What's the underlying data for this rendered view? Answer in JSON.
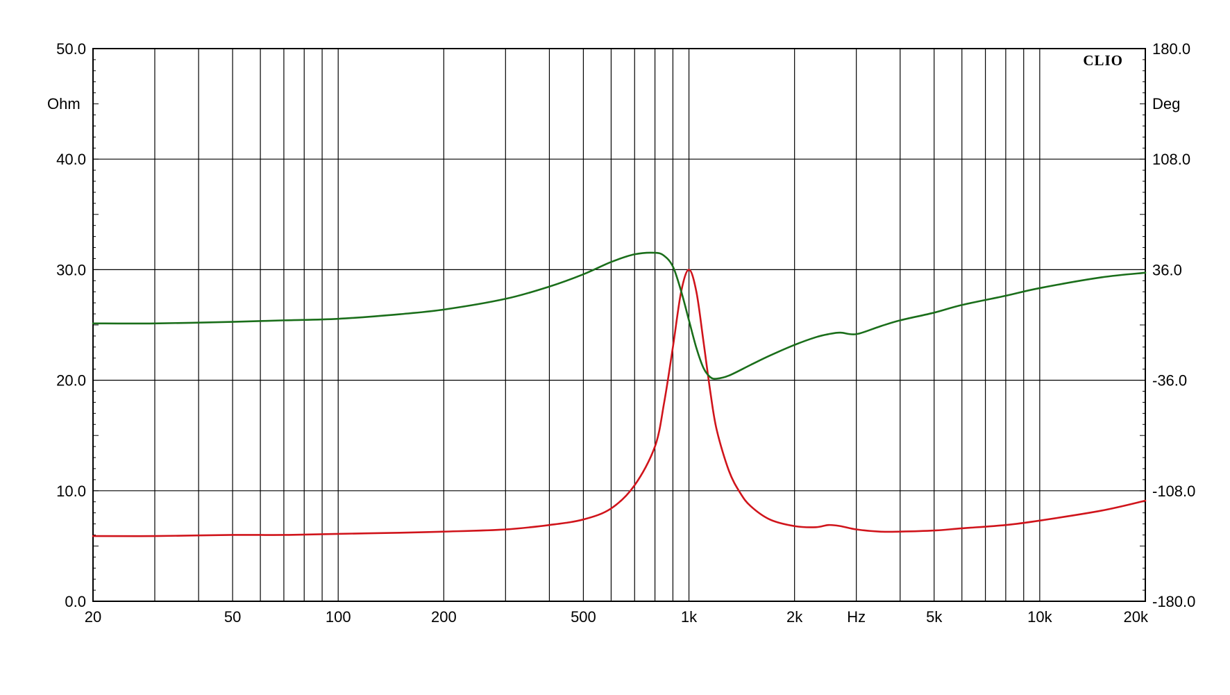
{
  "chart_data": {
    "type": "line",
    "title": "",
    "brand_label": "CLIO",
    "x_axis": {
      "scale": "log",
      "range": [
        20,
        20000
      ],
      "unit_label": "Hz",
      "tick_labels": [
        {
          "value": 20,
          "label": "20"
        },
        {
          "value": 50,
          "label": "50"
        },
        {
          "value": 100,
          "label": "100"
        },
        {
          "value": 200,
          "label": "200"
        },
        {
          "value": 500,
          "label": "500"
        },
        {
          "value": 1000,
          "label": "1k"
        },
        {
          "value": 2000,
          "label": "2k"
        },
        {
          "value": 5000,
          "label": "5k"
        },
        {
          "value": 10000,
          "label": "10k"
        },
        {
          "value": 20000,
          "label": "20k"
        }
      ],
      "unit_label_at": 3000
    },
    "y_left": {
      "unit_label": "Ohm",
      "range": [
        0,
        50
      ],
      "ticks": [
        "0.0",
        "10.0",
        "20.0",
        "30.0",
        "40.0",
        "50.0"
      ]
    },
    "y_right": {
      "unit_label": "Deg",
      "range": [
        -180,
        180
      ],
      "ticks": [
        "-180.0",
        "-108.0",
        "-36.0",
        "36.0",
        "108.0",
        "180.0"
      ]
    },
    "grid": true,
    "series": [
      {
        "axis": "left",
        "color": "#d0141b",
        "x": [
          20,
          30,
          50,
          70,
          100,
          150,
          200,
          300,
          400,
          500,
          600,
          700,
          800,
          850,
          900,
          950,
          1000,
          1050,
          1100,
          1150,
          1200,
          1300,
          1400,
          1500,
          1700,
          2000,
          2300,
          2500,
          2700,
          3000,
          3500,
          4000,
          5000,
          6000,
          8000,
          10000,
          15000,
          20000
        ],
        "values": [
          5.9,
          5.9,
          6.0,
          6.0,
          6.1,
          6.2,
          6.3,
          6.5,
          6.9,
          7.4,
          8.4,
          10.5,
          14.0,
          18.0,
          23.0,
          28.0,
          30.0,
          28.0,
          23.5,
          19.0,
          15.5,
          11.8,
          9.8,
          8.6,
          7.4,
          6.8,
          6.7,
          6.9,
          6.8,
          6.5,
          6.3,
          6.3,
          6.4,
          6.6,
          6.9,
          7.3,
          8.2,
          9.1
        ]
      },
      {
        "axis": "right",
        "color": "#1a6e1a",
        "x": [
          20,
          30,
          50,
          70,
          100,
          150,
          200,
          300,
          400,
          500,
          600,
          700,
          800,
          850,
          900,
          950,
          1000,
          1050,
          1100,
          1150,
          1200,
          1300,
          1500,
          1700,
          2000,
          2300,
          2500,
          2700,
          3000,
          3500,
          4000,
          5000,
          6000,
          8000,
          10000,
          15000,
          20000
        ],
        "values": [
          1,
          1,
          2,
          3,
          4,
          7,
          10,
          17,
          25,
          33,
          41,
          46,
          47,
          45,
          38,
          22,
          3,
          -15,
          -28,
          -34,
          -35,
          -33,
          -26,
          -20,
          -13,
          -8,
          -6,
          -5,
          -6,
          -1,
          3,
          8,
          13,
          19,
          24,
          31,
          34
        ]
      }
    ]
  }
}
